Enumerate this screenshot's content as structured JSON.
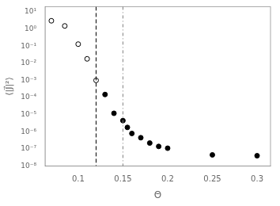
{
  "chart_data": {
    "type": "scatter",
    "x_label": "Θ",
    "y_label": "⟨|J⃗|²⟩",
    "log": "y",
    "grid": false,
    "series": [
      {
        "x": [
          0.07,
          0.085,
          0.1,
          0.11,
          0.12
        ],
        "values": [
          3.0,
          1.5,
          0.13,
          0.018,
          0.001
        ],
        "color": "black",
        "marker": "open_circle"
      },
      {
        "x": [
          0.13,
          0.14,
          0.15,
          0.155,
          0.16,
          0.17,
          0.18,
          0.19,
          0.2,
          0.25,
          0.3
        ],
        "values": [
          0.00015,
          1.2e-05,
          4.5e-06,
          1.8e-06,
          8e-07,
          4.5e-07,
          2.2e-07,
          1.4e-07,
          1.1e-07,
          4.5e-08,
          4e-08
        ],
        "color": "black",
        "marker": "circle"
      }
    ],
    "vlines": [
      {
        "x": 0.12,
        "color": "black",
        "line_style": "dashed"
      },
      {
        "x": 0.15,
        "color": "gray",
        "line_style": "dashdot"
      }
    ],
    "xlim": [
      0.063,
      0.315
    ],
    "xticks": [
      0.1,
      0.15,
      0.2,
      0.25,
      0.3
    ],
    "ylim": [
      1e-08,
      20.0
    ],
    "yticks": [
      {
        "value": 1e-08,
        "label": "10⁻⁸"
      },
      {
        "value": 1e-07,
        "label": "10⁻⁷"
      },
      {
        "value": 1e-06,
        "label": "10⁻⁶"
      },
      {
        "value": 1e-05,
        "label": "10⁻⁵"
      },
      {
        "value": 0.0001,
        "label": "10⁻⁴"
      },
      {
        "value": 0.001,
        "label": "10⁻³"
      },
      {
        "value": 0.01,
        "label": "10⁻²"
      },
      {
        "value": 0.1,
        "label": "10⁻¹"
      },
      {
        "value": 1,
        "label": "10⁰"
      },
      {
        "value": 10,
        "label": "10¹"
      }
    ]
  }
}
